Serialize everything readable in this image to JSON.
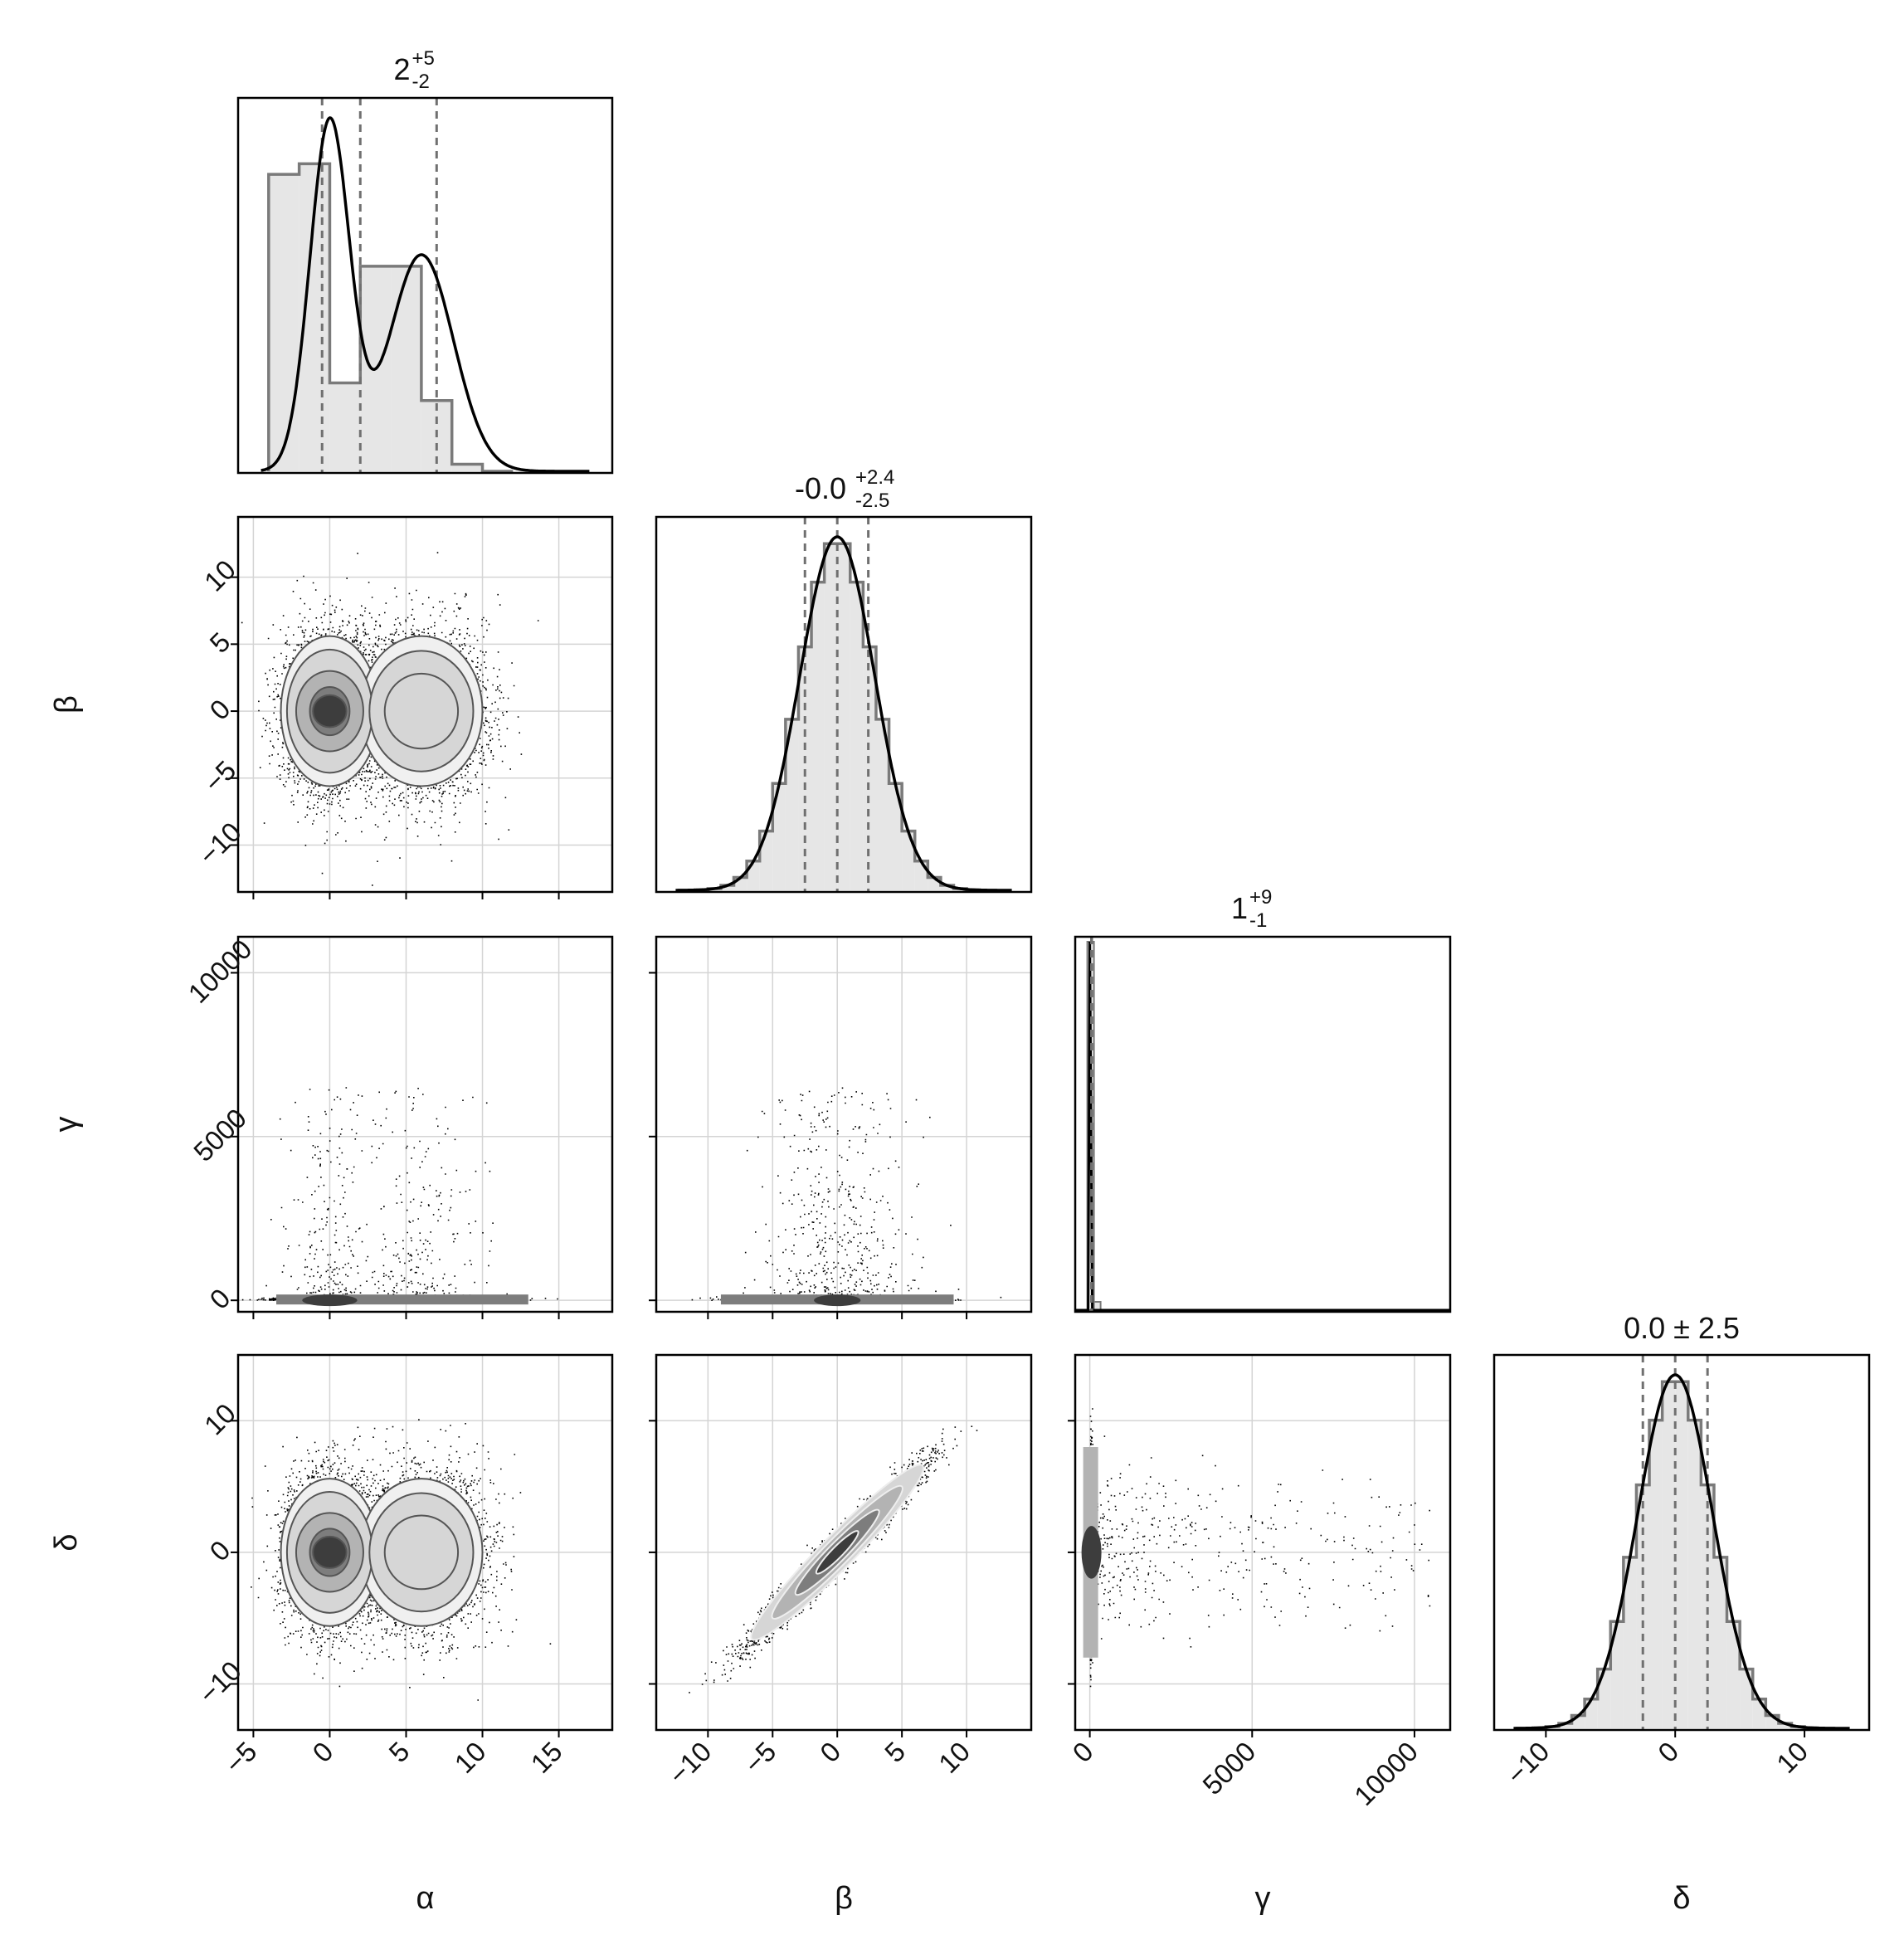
{
  "figure": {
    "variables": [
      "α",
      "β",
      "γ",
      "δ"
    ],
    "colors": {
      "frame": "#000000",
      "hist_fill": "#e6e6e6",
      "hist_edge": "#7a7a7a",
      "kde": "#000000",
      "quantile": "#707070",
      "grid": "#d4d4d4",
      "scatter": "#000000",
      "contour_levels": [
        "#f0f0f0",
        "#d6d6d6",
        "#b3b3b3",
        "#7d7d7d",
        "#3d3d3d"
      ]
    }
  },
  "chart_data": {
    "type": "corner",
    "grid": true,
    "diagonal": [
      {
        "variable": "α",
        "title": {
          "median": "2",
          "plus": "+5",
          "minus": "-2"
        },
        "xlim": [
          -6,
          18.5
        ],
        "quantiles": [
          -0.5,
          2,
          7
        ],
        "hist_bins": [
          -4,
          -2,
          0,
          2,
          4,
          6,
          8,
          10,
          12
        ],
        "hist_counts": [
          0.84,
          0.87,
          0.25,
          0.58,
          0.58,
          0.2,
          0.02,
          0
        ],
        "kde_components": [
          {
            "weight": 0.5,
            "mean": 0,
            "sd": 1.3
          },
          {
            "weight": 0.5,
            "mean": 6,
            "sd": 2.1
          }
        ]
      },
      {
        "variable": "β",
        "title": {
          "median": "-0.0",
          "plus": "+2.4",
          "minus": "-2.5"
        },
        "xlim": [
          -14,
          15
        ],
        "quantiles": [
          -2.5,
          0,
          2.4
        ],
        "hist_bins": [
          -11,
          -10,
          -9,
          -8,
          -7,
          -6,
          -5,
          -4,
          -3,
          -2,
          -1,
          0,
          1,
          2,
          3,
          4,
          5,
          6,
          7,
          8,
          9,
          10,
          11
        ],
        "kde_components": [
          {
            "weight": 1,
            "mean": 0,
            "sd": 2.9
          }
        ]
      },
      {
        "variable": "γ",
        "title": {
          "median": "1",
          "plus": "+9",
          "minus": "-1"
        },
        "xlim": [
          -450,
          11100
        ],
        "quantiles": [
          0,
          1,
          10
        ],
        "spike_value": 0
      },
      {
        "variable": "δ",
        "title_text": "0.0 ± 2.5",
        "xlim": [
          -14,
          15
        ],
        "quantiles": [
          -2.5,
          0,
          2.5
        ],
        "hist_bins": [
          -11,
          -10,
          -9,
          -8,
          -7,
          -6,
          -5,
          -4,
          -3,
          -2,
          -1,
          0,
          1,
          2,
          3,
          4,
          5,
          6,
          7,
          8,
          9,
          10,
          11
        ],
        "kde_components": [
          {
            "weight": 1,
            "mean": 0,
            "sd": 2.9
          }
        ]
      }
    ],
    "pairs": [
      {
        "x": "α",
        "y": "β",
        "xlim": [
          -6,
          18.5
        ],
        "ylim": [
          -13.5,
          14.5
        ],
        "kind": "bimodal",
        "centers": [
          [
            0,
            0
          ],
          [
            6,
            0
          ]
        ]
      },
      {
        "x": "α",
        "y": "γ",
        "xlim": [
          -6,
          18.5
        ],
        "ylim": [
          -350,
          11100
        ],
        "kind": "heavy_tail_y"
      },
      {
        "x": "β",
        "y": "γ",
        "xlim": [
          -14,
          15
        ],
        "ylim": [
          -350,
          11100
        ],
        "kind": "heavy_tail_y"
      },
      {
        "x": "α",
        "y": "δ",
        "xlim": [
          -6,
          18.5
        ],
        "ylim": [
          -13.5,
          15
        ],
        "kind": "bimodal",
        "centers": [
          [
            0,
            0
          ],
          [
            6,
            0
          ]
        ]
      },
      {
        "x": "β",
        "y": "δ",
        "xlim": [
          -14,
          15
        ],
        "ylim": [
          -13.5,
          15
        ],
        "kind": "correlated",
        "correlation": 0.97
      },
      {
        "x": "γ",
        "y": "δ",
        "xlim": [
          -450,
          11100
        ],
        "ylim": [
          -13.5,
          15
        ],
        "kind": "heavy_tail_x"
      }
    ],
    "axes": {
      "α": {
        "ticks": [
          -5,
          0,
          5,
          10,
          15
        ],
        "tick_labels": [
          "−5",
          "0",
          "5",
          "10",
          "15"
        ]
      },
      "β": {
        "ticks": [
          -10,
          -5,
          0,
          5,
          10
        ],
        "tick_labels": [
          "−10",
          "−5",
          "0",
          "5",
          "10"
        ]
      },
      "γ": {
        "ticks": [
          0,
          5000,
          10000
        ],
        "tick_labels": [
          "0",
          "5000",
          "10000"
        ]
      },
      "δ": {
        "ticks": [
          -10,
          0,
          10
        ],
        "tick_labels": [
          "−10",
          "0",
          "10"
        ]
      }
    }
  }
}
